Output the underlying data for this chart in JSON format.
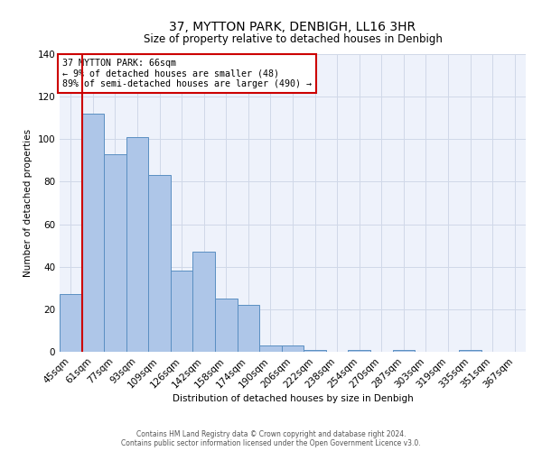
{
  "title1": "37, MYTTON PARK, DENBIGH, LL16 3HR",
  "title2": "Size of property relative to detached houses in Denbigh",
  "xlabel": "Distribution of detached houses by size in Denbigh",
  "ylabel": "Number of detached properties",
  "footer1": "Contains HM Land Registry data © Crown copyright and database right 2024.",
  "footer2": "Contains public sector information licensed under the Open Government Licence v3.0.",
  "annotation_line1": "37 MYTTON PARK: 66sqm",
  "annotation_line2": "← 9% of detached houses are smaller (48)",
  "annotation_line3": "89% of semi-detached houses are larger (490) →",
  "red_line_index": 1,
  "bar_values": [
    27,
    112,
    93,
    101,
    83,
    38,
    47,
    25,
    22,
    3,
    3,
    1,
    0,
    1,
    0,
    1,
    0,
    0,
    1,
    0,
    0
  ],
  "categories": [
    "45sqm",
    "61sqm",
    "77sqm",
    "93sqm",
    "109sqm",
    "126sqm",
    "142sqm",
    "158sqm",
    "174sqm",
    "190sqm",
    "206sqm",
    "222sqm",
    "238sqm",
    "254sqm",
    "270sqm",
    "287sqm",
    "303sqm",
    "319sqm",
    "335sqm",
    "351sqm",
    "367sqm"
  ],
  "bar_color": "#aec6e8",
  "bar_edge_color": "#5a8fc2",
  "red_line_color": "#cc0000",
  "annotation_box_edge": "#cc0000",
  "grid_color": "#d0d8e8",
  "bg_color": "#eef2fb",
  "ylim": [
    0,
    140
  ],
  "yticks": [
    0,
    20,
    40,
    60,
    80,
    100,
    120,
    140
  ],
  "title1_fontsize": 10,
  "title2_fontsize": 8.5,
  "axis_label_fontsize": 7.5,
  "tick_fontsize": 7.5
}
